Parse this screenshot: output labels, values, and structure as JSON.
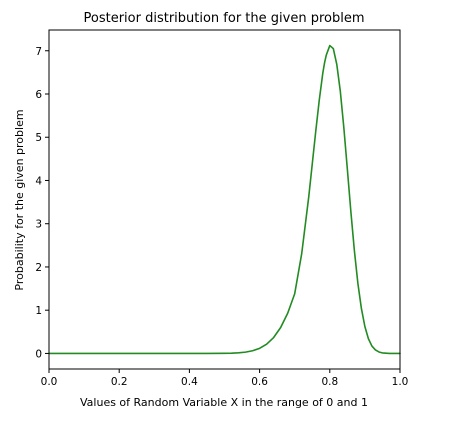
{
  "chart_data": {
    "type": "line",
    "title": "Posterior distribution for the given problem",
    "xlabel": "Values of Random Variable X in the range of 0 and 1",
    "ylabel": "Probability for the given problem",
    "xlim": [
      0.0,
      1.0
    ],
    "ylim": [
      -0.36,
      7.48
    ],
    "x_ticks": [
      0.0,
      0.2,
      0.4,
      0.6,
      0.8,
      1.0
    ],
    "x_tick_labels": [
      "0.0",
      "0.2",
      "0.4",
      "0.6",
      "0.8",
      "1.0"
    ],
    "y_ticks": [
      0,
      1,
      2,
      3,
      4,
      5,
      6,
      7
    ],
    "y_tick_labels": [
      "0",
      "1",
      "2",
      "3",
      "4",
      "5",
      "6",
      "7"
    ],
    "grid": false,
    "series": [
      {
        "color": "#228b22",
        "x": [
          0.0,
          0.05,
          0.1,
          0.15,
          0.2,
          0.25,
          0.3,
          0.35,
          0.4,
          0.45,
          0.5,
          0.52,
          0.54,
          0.56,
          0.58,
          0.6,
          0.62,
          0.64,
          0.66,
          0.68,
          0.7,
          0.72,
          0.74,
          0.75,
          0.76,
          0.77,
          0.78,
          0.785,
          0.79,
          0.8,
          0.81,
          0.82,
          0.83,
          0.84,
          0.85,
          0.86,
          0.87,
          0.88,
          0.89,
          0.9,
          0.91,
          0.92,
          0.93,
          0.94,
          0.95,
          0.97,
          1.0
        ],
        "y": [
          0.0,
          0.0,
          0.0,
          0.0,
          0.0,
          0.0,
          0.0,
          0.0,
          0.0,
          0.0,
          0.003,
          0.006,
          0.014,
          0.03,
          0.062,
          0.118,
          0.214,
          0.368,
          0.6,
          0.93,
          1.38,
          2.31,
          3.62,
          4.38,
          5.14,
          5.86,
          6.48,
          6.72,
          6.9,
          7.12,
          7.05,
          6.68,
          6.06,
          5.22,
          4.26,
          3.28,
          2.38,
          1.62,
          1.04,
          0.62,
          0.34,
          0.17,
          0.08,
          0.034,
          0.012,
          0.001,
          0.0
        ]
      }
    ]
  }
}
